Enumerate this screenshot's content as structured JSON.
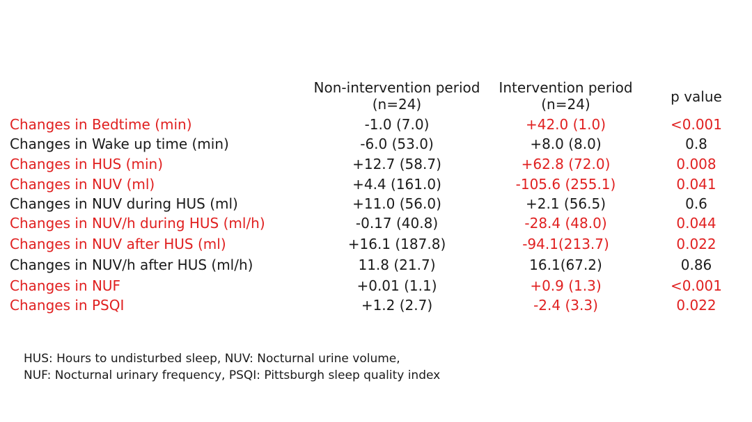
{
  "colors": {
    "significant": "#e02020",
    "text": "#1a1a1a"
  },
  "headers": {
    "non_intervention": {
      "line1": "Non-intervention period",
      "line2": "(n=24)"
    },
    "intervention": {
      "line1": "Intervention period",
      "line2": "(n=24)"
    },
    "p_value": "p value"
  },
  "rows": [
    {
      "label": "Changes in Bedtime (min)",
      "non_intervention": "-1.0 (7.0)",
      "intervention": "+42.0 (1.0)",
      "p": "<0.001",
      "significant": true
    },
    {
      "label": "Changes in Wake up time (min)",
      "non_intervention": "-6.0 (53.0)",
      "intervention": "+8.0 (8.0)",
      "p": "0.8",
      "significant": false
    },
    {
      "label": "Changes in HUS (min)",
      "non_intervention": "+12.7 (58.7)",
      "intervention": "+62.8 (72.0)",
      "p": "0.008",
      "significant": true
    },
    {
      "label": "Changes in NUV (ml)",
      "non_intervention": "+4.4 (161.0)",
      "intervention": "-105.6 (255.1)",
      "p": "0.041",
      "significant": true
    },
    {
      "label": "Changes in NUV during HUS (ml)",
      "non_intervention": "+11.0 (56.0)",
      "intervention": "+2.1 (56.5)",
      "p": "0.6",
      "significant": false
    },
    {
      "label": "Changes in NUV/h during HUS (ml/h)",
      "non_intervention": "-0.17 (40.8)",
      "intervention": "-28.4 (48.0)",
      "p": "0.044",
      "significant": true
    },
    {
      "label": "Changes in NUV after HUS (ml)",
      "non_intervention": "+16.1 (187.8)",
      "intervention": "-94.1(213.7)",
      "p": "0.022",
      "significant": true
    },
    {
      "label": "Changes in NUV/h after HUS (ml/h)",
      "non_intervention": "11.8 (21.7)",
      "intervention": "16.1(67.2)",
      "p": "0.86",
      "significant": false
    },
    {
      "label": "Changes in NUF",
      "non_intervention": "+0.01 (1.1)",
      "intervention": "+0.9 (1.3)",
      "p": "<0.001",
      "significant": true
    },
    {
      "label": "Changes in PSQI",
      "non_intervention": "+1.2 (2.7)",
      "intervention": "-2.4 (3.3)",
      "p": "0.022",
      "significant": true
    }
  ],
  "footnote": {
    "line1": "HUS: Hours to undisturbed sleep, NUV: Nocturnal urine volume,",
    "line2": "NUF: Nocturnal urinary frequency, PSQI: Pittsburgh sleep quality index"
  }
}
